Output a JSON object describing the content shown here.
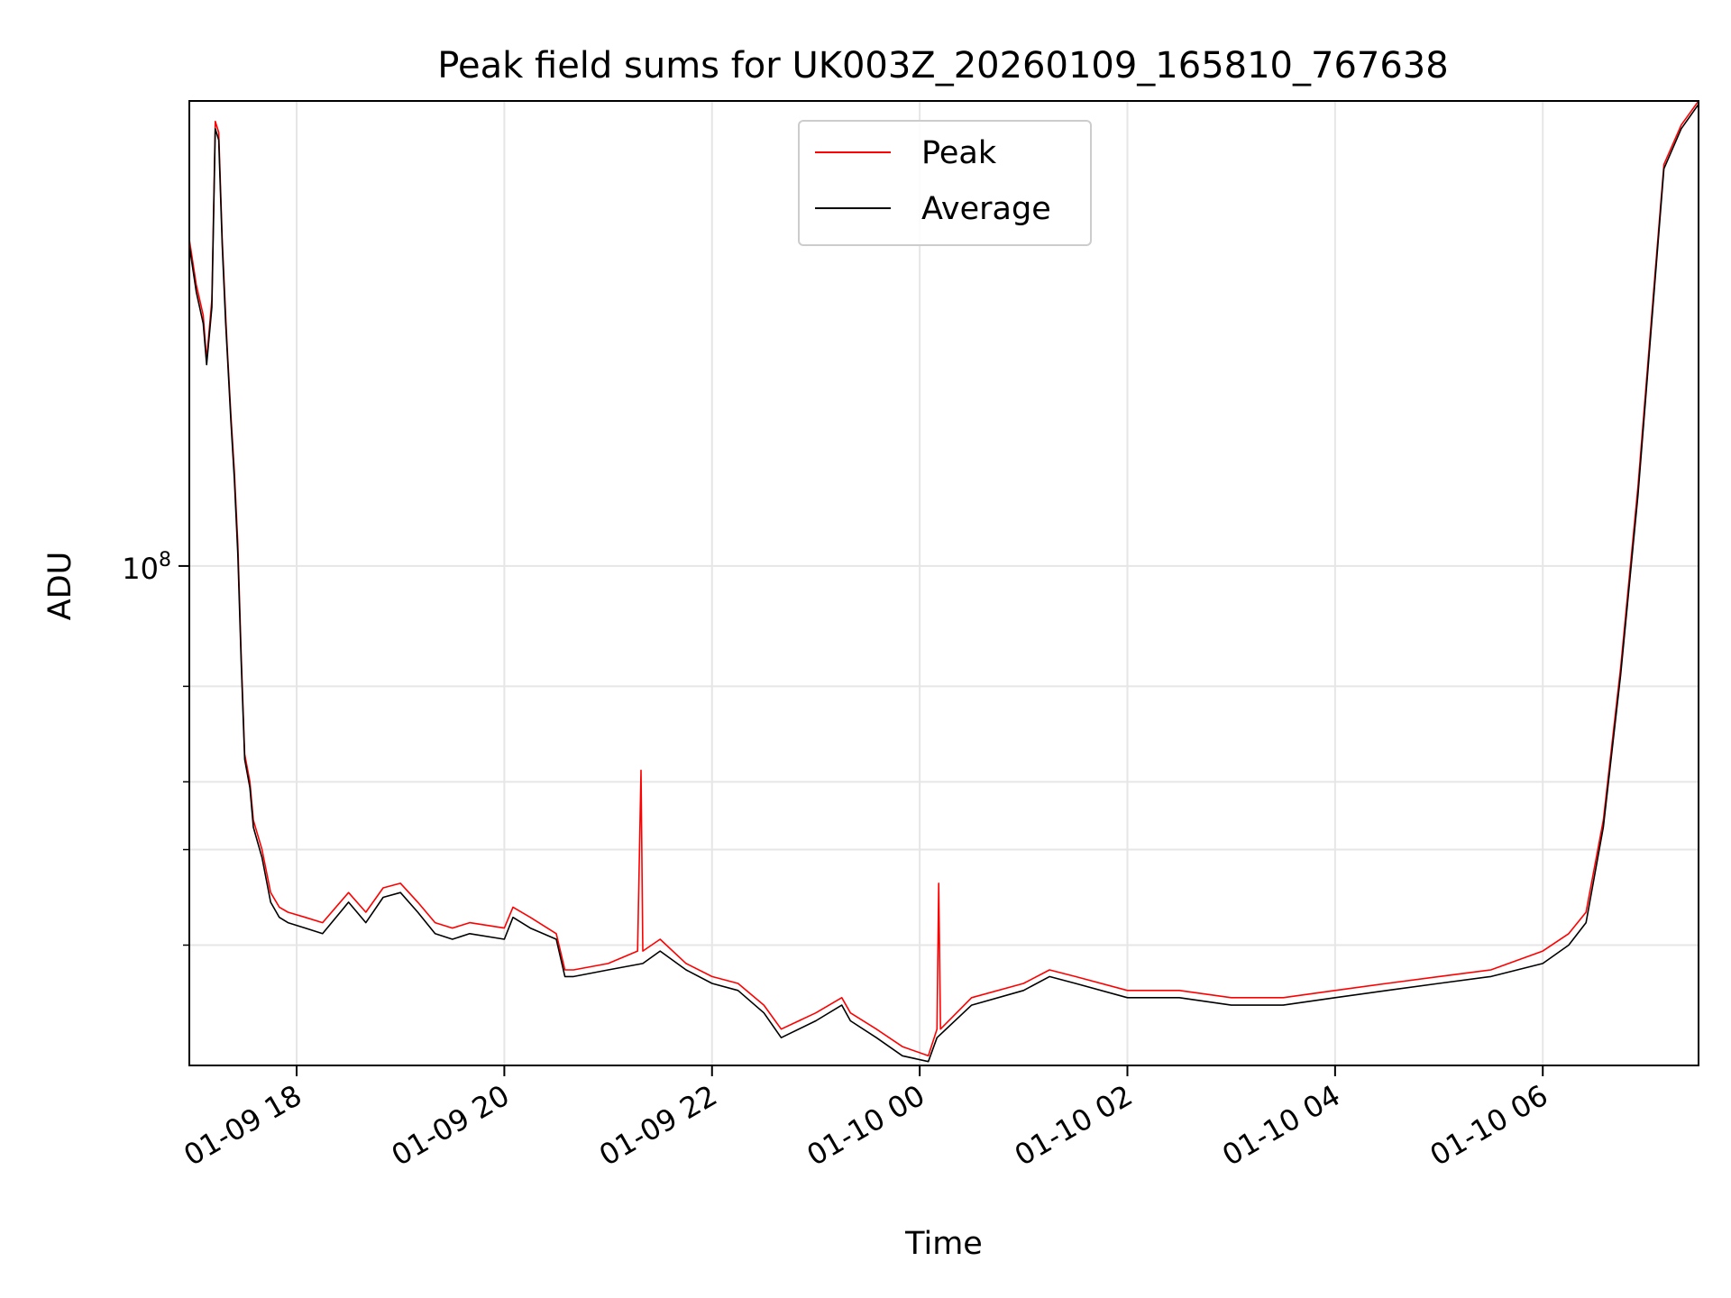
{
  "chart_data": {
    "type": "line",
    "title": "Peak field sums for UK003Z_20260109_165810_767638",
    "xlabel": "Time",
    "ylabel": "ADU",
    "yscale": "log",
    "ylim": [
      12000000,
      720000000
    ],
    "xlim": [
      "2026-01-09 16:58",
      "2026-01-10 07:30"
    ],
    "y_major_ticks": [
      {
        "value": 100000000,
        "base": "10",
        "exp": "8"
      }
    ],
    "y_minor_ticks": [
      20000000,
      30000000,
      40000000,
      60000000
    ],
    "x_ticks": [
      {
        "x": "2026-01-09 18:00",
        "label": "01-09 18"
      },
      {
        "x": "2026-01-09 20:00",
        "label": "01-09 20"
      },
      {
        "x": "2026-01-09 22:00",
        "label": "01-09 22"
      },
      {
        "x": "2026-01-10 00:00",
        "label": "01-10 00"
      },
      {
        "x": "2026-01-10 02:00",
        "label": "01-10 02"
      },
      {
        "x": "2026-01-10 04:00",
        "label": "01-10 04"
      },
      {
        "x": "2026-01-10 06:00",
        "label": "01-10 06"
      }
    ],
    "grid": true,
    "legend_position": "top-center",
    "series": [
      {
        "name": "Peak",
        "color": "#ff0000",
        "x": [
          "2026-01-09 16:58",
          "2026-01-09 17:02",
          "2026-01-09 17:06",
          "2026-01-09 17:08",
          "2026-01-09 17:11",
          "2026-01-09 17:13",
          "2026-01-09 17:15",
          "2026-01-09 17:17",
          "2026-01-09 17:19",
          "2026-01-09 17:20",
          "2026-01-09 17:22",
          "2026-01-09 17:24",
          "2026-01-09 17:26",
          "2026-01-09 17:28",
          "2026-01-09 17:30",
          "2026-01-09 17:33",
          "2026-01-09 17:35",
          "2026-01-09 17:40",
          "2026-01-09 17:45",
          "2026-01-09 17:50",
          "2026-01-09 17:55",
          "2026-01-09 18:05",
          "2026-01-09 18:15",
          "2026-01-09 18:30",
          "2026-01-09 18:40",
          "2026-01-09 18:50",
          "2026-01-09 19:00",
          "2026-01-09 19:10",
          "2026-01-09 19:20",
          "2026-01-09 19:30",
          "2026-01-09 19:40",
          "2026-01-09 20:00",
          "2026-01-09 20:05",
          "2026-01-09 20:15",
          "2026-01-09 20:30",
          "2026-01-09 20:35",
          "2026-01-09 20:40",
          "2026-01-09 21:00",
          "2026-01-09 21:17",
          "2026-01-09 21:19",
          "2026-01-09 21:20",
          "2026-01-09 21:30",
          "2026-01-09 21:45",
          "2026-01-09 22:00",
          "2026-01-09 22:15",
          "2026-01-09 22:30",
          "2026-01-09 22:40",
          "2026-01-09 23:00",
          "2026-01-09 23:15",
          "2026-01-09 23:20",
          "2026-01-09 23:35",
          "2026-01-09 23:50",
          "2026-01-10 00:05",
          "2026-01-10 00:10",
          "2026-01-10 00:11",
          "2026-01-10 00:12",
          "2026-01-10 00:30",
          "2026-01-10 01:00",
          "2026-01-10 01:15",
          "2026-01-10 01:30",
          "2026-01-10 02:00",
          "2026-01-10 02:30",
          "2026-01-10 03:00",
          "2026-01-10 03:30",
          "2026-01-10 04:00",
          "2026-01-10 04:30",
          "2026-01-10 05:00",
          "2026-01-10 05:30",
          "2026-01-10 06:00",
          "2026-01-10 06:15",
          "2026-01-10 06:25",
          "2026-01-10 06:35",
          "2026-01-10 06:45",
          "2026-01-10 06:55",
          "2026-01-10 07:05",
          "2026-01-10 07:10",
          "2026-01-10 07:20",
          "2026-01-10 07:30"
        ],
        "y": [
          400000000,
          330000000,
          290000000,
          240000000,
          310000000,
          660000000,
          630000000,
          400000000,
          290000000,
          250000000,
          190000000,
          150000000,
          110000000,
          68000000,
          45000000,
          40000000,
          34000000,
          30000000,
          25000000,
          23500000,
          23000000,
          22500000,
          22000000,
          25000000,
          23000000,
          25500000,
          26000000,
          24000000,
          22000000,
          21500000,
          22000000,
          21500000,
          23500000,
          22500000,
          21000000,
          18000000,
          18000000,
          18500000,
          19500000,
          42000000,
          19500000,
          20500000,
          18500000,
          17500000,
          17000000,
          15500000,
          14000000,
          15000000,
          16000000,
          15000000,
          14000000,
          13000000,
          12500000,
          14000000,
          26000000,
          14000000,
          16000000,
          17000000,
          18000000,
          17500000,
          16500000,
          16500000,
          16000000,
          16000000,
          16500000,
          17000000,
          17500000,
          18000000,
          19500000,
          21000000,
          23000000,
          34000000,
          65000000,
          140000000,
          350000000,
          550000000,
          650000000,
          720000000
        ]
      },
      {
        "name": "Average",
        "color": "#000000",
        "x": [
          "2026-01-09 16:58",
          "2026-01-09 17:02",
          "2026-01-09 17:06",
          "2026-01-09 17:08",
          "2026-01-09 17:11",
          "2026-01-09 17:13",
          "2026-01-09 17:15",
          "2026-01-09 17:17",
          "2026-01-09 17:19",
          "2026-01-09 17:20",
          "2026-01-09 17:22",
          "2026-01-09 17:24",
          "2026-01-09 17:26",
          "2026-01-09 17:28",
          "2026-01-09 17:30",
          "2026-01-09 17:33",
          "2026-01-09 17:35",
          "2026-01-09 17:40",
          "2026-01-09 17:45",
          "2026-01-09 17:50",
          "2026-01-09 17:55",
          "2026-01-09 18:05",
          "2026-01-09 18:15",
          "2026-01-09 18:30",
          "2026-01-09 18:40",
          "2026-01-09 18:50",
          "2026-01-09 19:00",
          "2026-01-09 19:10",
          "2026-01-09 19:20",
          "2026-01-09 19:30",
          "2026-01-09 19:40",
          "2026-01-09 20:00",
          "2026-01-09 20:05",
          "2026-01-09 20:15",
          "2026-01-09 20:30",
          "2026-01-09 20:35",
          "2026-01-09 20:40",
          "2026-01-09 21:00",
          "2026-01-09 21:20",
          "2026-01-09 21:30",
          "2026-01-09 21:45",
          "2026-01-09 22:00",
          "2026-01-09 22:15",
          "2026-01-09 22:30",
          "2026-01-09 22:40",
          "2026-01-09 23:00",
          "2026-01-09 23:15",
          "2026-01-09 23:20",
          "2026-01-09 23:35",
          "2026-01-09 23:50",
          "2026-01-10 00:05",
          "2026-01-10 00:10",
          "2026-01-10 00:30",
          "2026-01-10 01:00",
          "2026-01-10 01:15",
          "2026-01-10 01:30",
          "2026-01-10 02:00",
          "2026-01-10 02:30",
          "2026-01-10 03:00",
          "2026-01-10 03:30",
          "2026-01-10 04:00",
          "2026-01-10 04:30",
          "2026-01-10 05:00",
          "2026-01-10 05:30",
          "2026-01-10 06:00",
          "2026-01-10 06:15",
          "2026-01-10 06:25",
          "2026-01-10 06:35",
          "2026-01-10 06:45",
          "2026-01-10 06:55",
          "2026-01-10 07:05",
          "2026-01-10 07:10",
          "2026-01-10 07:20",
          "2026-01-10 07:30"
        ],
        "y": [
          390000000,
          320000000,
          280000000,
          235000000,
          300000000,
          640000000,
          610000000,
          390000000,
          280000000,
          245000000,
          185000000,
          145000000,
          105000000,
          66000000,
          44000000,
          39000000,
          33000000,
          29000000,
          24000000,
          22500000,
          22000000,
          21500000,
          21000000,
          24000000,
          22000000,
          24500000,
          25000000,
          23000000,
          21000000,
          20500000,
          21000000,
          20500000,
          22500000,
          21500000,
          20500000,
          17500000,
          17500000,
          18000000,
          18500000,
          19500000,
          18000000,
          17000000,
          16500000,
          15000000,
          13500000,
          14500000,
          15500000,
          14500000,
          13500000,
          12500000,
          12200000,
          13500000,
          15500000,
          16500000,
          17500000,
          17000000,
          16000000,
          16000000,
          15500000,
          15500000,
          16000000,
          16500000,
          17000000,
          17500000,
          18500000,
          20000000,
          22000000,
          33000000,
          63000000,
          135000000,
          340000000,
          540000000,
          640000000,
          710000000
        ]
      }
    ]
  }
}
